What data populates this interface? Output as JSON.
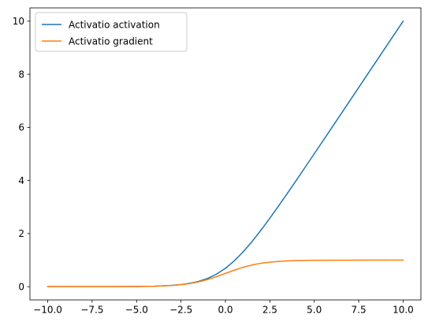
{
  "chart_data": {
    "type": "line",
    "title": "",
    "xlabel": "",
    "ylabel": "",
    "xlim": [
      -11,
      11
    ],
    "ylim": [
      -0.5,
      10.5
    ],
    "grid": false,
    "legend_position": "top-left",
    "x_ticks": [
      -10.0,
      -7.5,
      -5.0,
      -2.5,
      0.0,
      2.5,
      5.0,
      7.5,
      10.0
    ],
    "x_tick_labels": [
      "−10.0",
      "−7.5",
      "−5.0",
      "−2.5",
      "0.0",
      "2.5",
      "5.0",
      "7.5",
      "10.0"
    ],
    "y_ticks": [
      0,
      2,
      4,
      6,
      8,
      10
    ],
    "y_tick_labels": [
      "0",
      "2",
      "4",
      "6",
      "8",
      "10"
    ],
    "x": [
      -10,
      -9,
      -8,
      -7,
      -6,
      -5,
      -4,
      -3,
      -2.5,
      -2,
      -1.5,
      -1,
      -0.5,
      0,
      0.5,
      1,
      1.5,
      2,
      2.5,
      3,
      3.5,
      4,
      5,
      6,
      7,
      8,
      9,
      10
    ],
    "series": [
      {
        "name": "Activatio activation",
        "color": "#1f77b4",
        "values": [
          0.0,
          0.0,
          0.0,
          0.001,
          0.002,
          0.007,
          0.018,
          0.049,
          0.079,
          0.127,
          0.201,
          0.313,
          0.474,
          0.693,
          0.974,
          1.313,
          1.701,
          2.127,
          2.579,
          3.049,
          3.53,
          4.018,
          5.007,
          6.002,
          7.001,
          8.0,
          9.0,
          10.0
        ]
      },
      {
        "name": "Activatio gradient",
        "color": "#ff7f0e",
        "values": [
          0.0,
          0.0,
          0.0,
          0.001,
          0.002,
          0.007,
          0.018,
          0.047,
          0.076,
          0.119,
          0.182,
          0.269,
          0.378,
          0.5,
          0.622,
          0.731,
          0.818,
          0.881,
          0.924,
          0.953,
          0.971,
          0.982,
          0.993,
          0.998,
          0.999,
          1.0,
          1.0,
          1.0
        ]
      }
    ]
  }
}
